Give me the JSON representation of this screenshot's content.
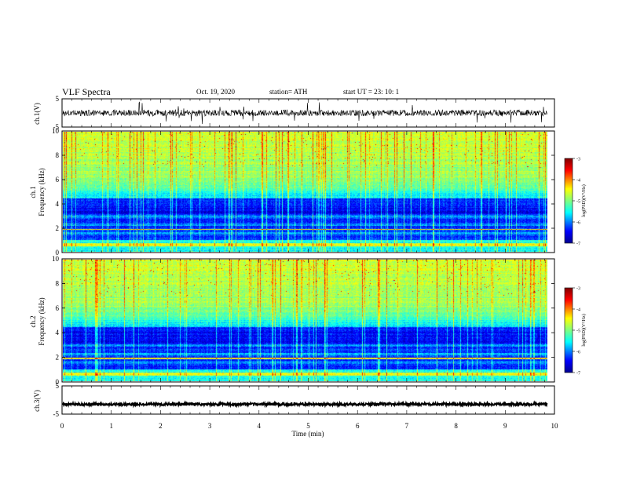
{
  "header": {
    "title": "VLF Spectra",
    "date": "Oct. 19, 2020",
    "station": "station= ATH",
    "start": "start  UT  =   23: 10: 1"
  },
  "chart_data": [
    {
      "type": "line",
      "panel": "ch1-waveform",
      "ylabel": "ch.1(V)",
      "ylim": [
        -5,
        5
      ],
      "yticks": [
        "5",
        "-5"
      ],
      "x_range_min": [
        0,
        10
      ],
      "description_level": 0
    },
    {
      "type": "heatmap",
      "panel": "ch1-spectrogram",
      "ylabel": "ch.1\nFrequency (kHz)",
      "ylabel_line1": "ch.1",
      "ylabel_line2": "Frequency (kHz)",
      "ylim": [
        0,
        10
      ],
      "yticks": [
        "0",
        "2",
        "4",
        "6",
        "8",
        "10"
      ],
      "colorbar": {
        "label": "log(PSD)(V²/Hz)",
        "range": [
          -7,
          -3
        ],
        "ticks": [
          "-3",
          "-4",
          "-5",
          "-6",
          "-7"
        ]
      },
      "seed": 7
    },
    {
      "type": "heatmap",
      "panel": "ch2-spectrogram",
      "ylabel_line1": "ch.2",
      "ylabel_line2": "Frequency (kHz)",
      "ylim": [
        0,
        10
      ],
      "yticks": [
        "0",
        "2",
        "4",
        "6",
        "8",
        "10"
      ],
      "colorbar": {
        "label": "log(PSD)(V²/Hz)",
        "range": [
          -7,
          -3
        ],
        "ticks": [
          "-3",
          "-4",
          "-5",
          "-6",
          "-7"
        ]
      },
      "seed": 13
    },
    {
      "type": "line",
      "panel": "ch3-waveform",
      "ylabel": "ch.3(V)",
      "ylim": [
        -5,
        5
      ],
      "yticks": [
        "5",
        "-5"
      ],
      "level": -1.5
    }
  ],
  "xaxis": {
    "label": "Time (min)",
    "range": [
      0,
      10
    ],
    "ticks": [
      "0",
      "1",
      "2",
      "3",
      "4",
      "5",
      "6",
      "7",
      "8",
      "9",
      "10"
    ],
    "data_end": 9.85
  },
  "colors": {
    "jet": [
      "#00008f",
      "#0000ff",
      "#00ffff",
      "#80ff80",
      "#ffff00",
      "#ff0000",
      "#800000"
    ]
  }
}
